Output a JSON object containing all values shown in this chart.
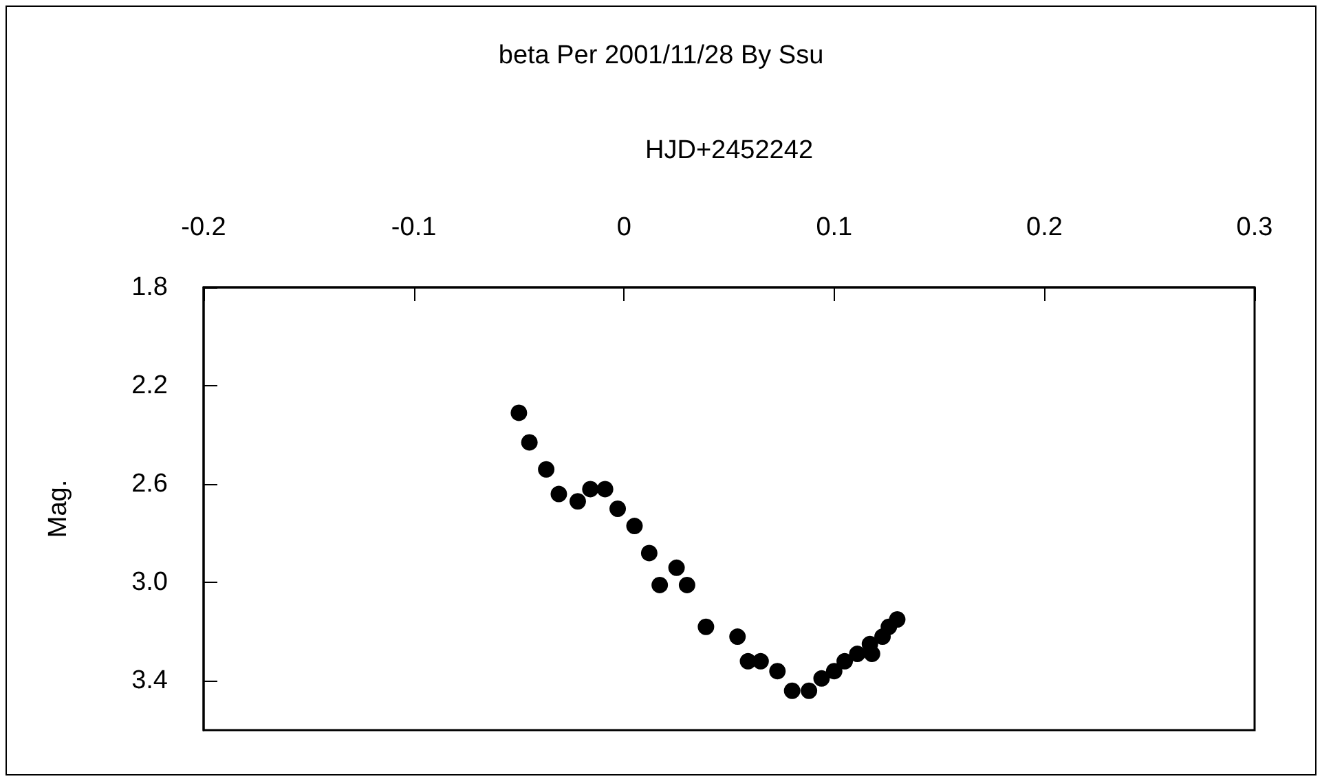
{
  "chart_data": {
    "type": "scatter",
    "title": "beta Per 2001/11/28 By Ssu",
    "xlabel": "HJD+2452242",
    "ylabel": "Mag.",
    "x": [
      -0.05,
      -0.045,
      -0.037,
      -0.031,
      -0.022,
      -0.016,
      -0.009,
      -0.003,
      0.005,
      0.012,
      0.017,
      0.025,
      0.03,
      0.039,
      0.054,
      0.059,
      0.065,
      0.073,
      0.08,
      0.088,
      0.094,
      0.1,
      0.105,
      0.111,
      0.117,
      0.118,
      0.123,
      0.126,
      0.13
    ],
    "series": [
      {
        "color": "#000000",
        "values": [
          2.31,
          2.43,
          2.54,
          2.64,
          2.67,
          2.62,
          2.62,
          2.7,
          2.77,
          2.88,
          3.01,
          2.94,
          3.01,
          3.18,
          3.22,
          3.32,
          3.32,
          3.36,
          3.44,
          3.44,
          3.39,
          3.36,
          3.32,
          3.29,
          3.25,
          3.29,
          3.22,
          3.18,
          3.15
        ]
      }
    ],
    "xlim": [
      -0.2,
      0.3
    ],
    "xticks": [
      -0.2,
      -0.1,
      0,
      0.1,
      0.2,
      0.3
    ],
    "ylim": [
      3.6,
      1.8
    ],
    "yticks": [
      1.8,
      2.2,
      2.6,
      {
        "value": 3,
        "label": "3.0"
      },
      3.4
    ],
    "marker": "circle",
    "grid": false
  }
}
